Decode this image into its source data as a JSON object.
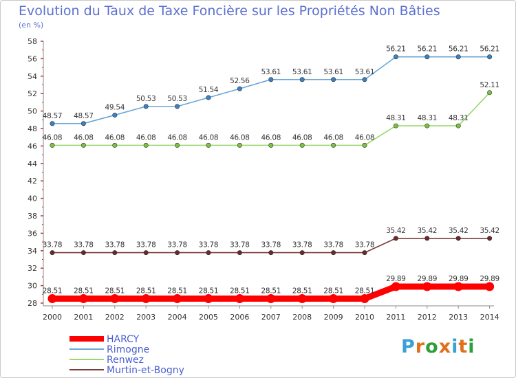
{
  "header": {
    "title": "Evolution du Taux de Taxe Foncière sur les Propriétés Non Bâties",
    "unit": "(en %)"
  },
  "brand": {
    "letters": [
      "P",
      "r",
      "o",
      "x",
      "i",
      "t",
      "i"
    ],
    "colors": [
      "#3aa0d8",
      "#e0701c",
      "#2e9e3a",
      "#e0701c",
      "#3aa0d8",
      "#e0701c",
      "#2e9e3a"
    ]
  },
  "chart_data": {
    "type": "line",
    "categories": [
      "2000",
      "2001",
      "2002",
      "2003",
      "2004",
      "2005",
      "2006",
      "2007",
      "2008",
      "2009",
      "2010",
      "2011",
      "2012",
      "2013",
      "2014"
    ],
    "ylim": [
      28,
      58
    ],
    "yticks": [
      28,
      30,
      32,
      34,
      36,
      38,
      40,
      42,
      44,
      46,
      48,
      50,
      52,
      54,
      56,
      58
    ],
    "grid": false,
    "legend_position": "bottom-left",
    "series": [
      {
        "name": "HARCY",
        "color": "#ff0000",
        "emphasis": true,
        "values": [
          28.51,
          28.51,
          28.51,
          28.51,
          28.51,
          28.51,
          28.51,
          28.51,
          28.51,
          28.51,
          28.51,
          29.89,
          29.89,
          29.89,
          29.89
        ],
        "labels": [
          "28.51",
          "28.51",
          "28.51",
          "28.51",
          "28.51",
          "28.51",
          "28.51",
          "28.51",
          "28.51",
          "28.51",
          "28.51",
          "29.89",
          "29.89",
          "29.89",
          "29.89"
        ]
      },
      {
        "name": "Rimogne",
        "color": "#6aa6d6",
        "marker_color": "#3a82c4",
        "values": [
          48.57,
          48.57,
          49.54,
          50.53,
          50.53,
          51.54,
          52.56,
          53.61,
          53.61,
          53.61,
          53.61,
          56.21,
          56.21,
          56.21,
          56.21
        ],
        "labels": [
          "48.57",
          "48.57",
          "49.54",
          "50.53",
          "50.53",
          "51.54",
          "52.56",
          "53.61",
          "53.61",
          "53.61",
          "53.61",
          "56.21",
          "56.21",
          "56.21",
          "56.21"
        ]
      },
      {
        "name": "Renwez",
        "color": "#98d86c",
        "marker_color": "#7cc43c",
        "values": [
          46.08,
          46.08,
          46.08,
          46.08,
          46.08,
          46.08,
          46.08,
          46.08,
          46.08,
          46.08,
          46.08,
          48.31,
          48.31,
          48.31,
          52.11
        ],
        "labels": [
          "46.08",
          "46.08",
          "46.08",
          "46.08",
          "46.08",
          "46.08",
          "46.08",
          "46.08",
          "46.08",
          "46.08",
          "46.08",
          "48.31",
          "48.31",
          "48.31",
          "52.11"
        ]
      },
      {
        "name": "Murtin-et-Bogny",
        "color": "#7a3a3a",
        "marker_color": "#6a2a2a",
        "values": [
          33.78,
          33.78,
          33.78,
          33.78,
          33.78,
          33.78,
          33.78,
          33.78,
          33.78,
          33.78,
          33.78,
          35.42,
          35.42,
          35.42,
          35.42
        ],
        "labels": [
          "33.78",
          "33.78",
          "33.78",
          "33.78",
          "33.78",
          "33.78",
          "33.78",
          "33.78",
          "33.78",
          "33.78",
          "33.78",
          "35.42",
          "35.42",
          "35.42",
          "35.42"
        ]
      }
    ]
  }
}
